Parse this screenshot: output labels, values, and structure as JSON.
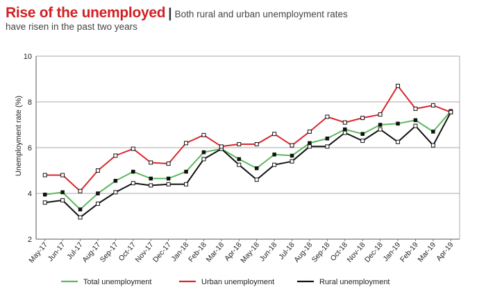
{
  "header": {
    "title": "Rise of the unemployed",
    "separator": "|",
    "subtitle_line1": "Both rural and urban unemployment rates",
    "subtitle_line2": "have risen in the past two years"
  },
  "chart_data": {
    "type": "line",
    "ylabel": "Unemployment rate (%)",
    "xlabel": "",
    "ylim": [
      2,
      10
    ],
    "yticks": [
      2,
      4,
      6,
      8,
      10
    ],
    "grid": true,
    "legend_position": "bottom",
    "categories": [
      "May-17",
      "Jun-17",
      "Jul-17",
      "Aug-17",
      "Sep-17",
      "Oct-17",
      "Nov-17",
      "Dec-17",
      "Jan-18",
      "Feb-18",
      "Mar-18",
      "Apr-18",
      "May-18",
      "Jun-18",
      "Jul-18",
      "Aug-18",
      "Sep-18",
      "Oct-18",
      "Nov-18",
      "Dec-18",
      "Jan-19",
      "Feb-19",
      "Mar-19",
      "Apr-19"
    ],
    "series": [
      {
        "name": "Total unemployment",
        "color": "#5cb85c",
        "marker": "filled-square",
        "values": [
          3.95,
          4.05,
          3.3,
          4.0,
          4.55,
          4.95,
          4.65,
          4.65,
          4.95,
          5.8,
          5.95,
          5.5,
          5.1,
          5.7,
          5.65,
          6.2,
          6.4,
          6.8,
          6.6,
          7.0,
          7.05,
          7.2,
          6.7,
          7.6
        ]
      },
      {
        "name": "Urban unemployment",
        "color": "#d9262c",
        "marker": "hollow-square",
        "values": [
          4.8,
          4.8,
          4.1,
          5.0,
          5.65,
          5.95,
          5.35,
          5.3,
          6.2,
          6.55,
          6.05,
          6.15,
          6.15,
          6.6,
          6.1,
          6.7,
          7.35,
          7.1,
          7.3,
          7.45,
          8.7,
          7.7,
          7.85,
          7.55
        ]
      },
      {
        "name": "Rural unemployment",
        "color": "#111111",
        "marker": "hollow-square",
        "values": [
          3.6,
          3.7,
          2.95,
          3.55,
          4.05,
          4.45,
          4.35,
          4.4,
          4.4,
          5.5,
          5.95,
          5.25,
          4.6,
          5.25,
          5.4,
          6.05,
          6.05,
          6.65,
          6.3,
          6.8,
          6.25,
          6.95,
          6.1,
          7.55
        ]
      }
    ]
  }
}
